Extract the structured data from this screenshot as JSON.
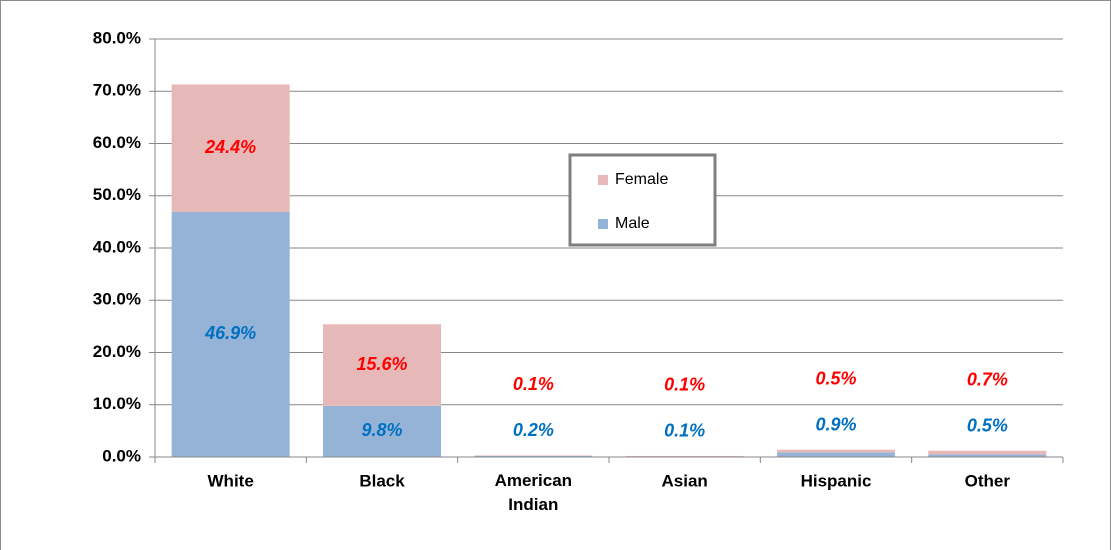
{
  "chart_data": {
    "type": "bar",
    "stacked": true,
    "categories": [
      "White",
      "Black",
      "American Indian",
      "Asian",
      "Hispanic",
      "Other"
    ],
    "series": [
      {
        "name": "Male",
        "color": "#95b3d7",
        "label_color": "#0070c0",
        "values": [
          46.9,
          9.8,
          0.2,
          0.1,
          0.9,
          0.5
        ],
        "value_labels": [
          "46.9%",
          "9.8%",
          "0.2%",
          "0.1%",
          "0.9%",
          "0.5%"
        ]
      },
      {
        "name": "Female",
        "color": "#e6b9b8",
        "label_color": "#ff0000",
        "values": [
          24.4,
          15.6,
          0.1,
          0.1,
          0.5,
          0.7
        ],
        "value_labels": [
          "24.4%",
          "15.6%",
          "0.1%",
          "0.1%",
          "0.5%",
          "0.7%"
        ]
      }
    ],
    "ylim": [
      0,
      80
    ],
    "yticks": [
      {
        "value": 0,
        "label": "0.0%"
      },
      {
        "value": 10,
        "label": "10.0%"
      },
      {
        "value": 20,
        "label": "20.0%"
      },
      {
        "value": 30,
        "label": "30.0%"
      },
      {
        "value": 40,
        "label": "40.0%"
      },
      {
        "value": 50,
        "label": "50.0%"
      },
      {
        "value": 60,
        "label": "60.0%"
      },
      {
        "value": 70,
        "label": "70.0%"
      },
      {
        "value": 80,
        "label": "80.0%"
      }
    ],
    "grid": true,
    "legend": "center"
  }
}
